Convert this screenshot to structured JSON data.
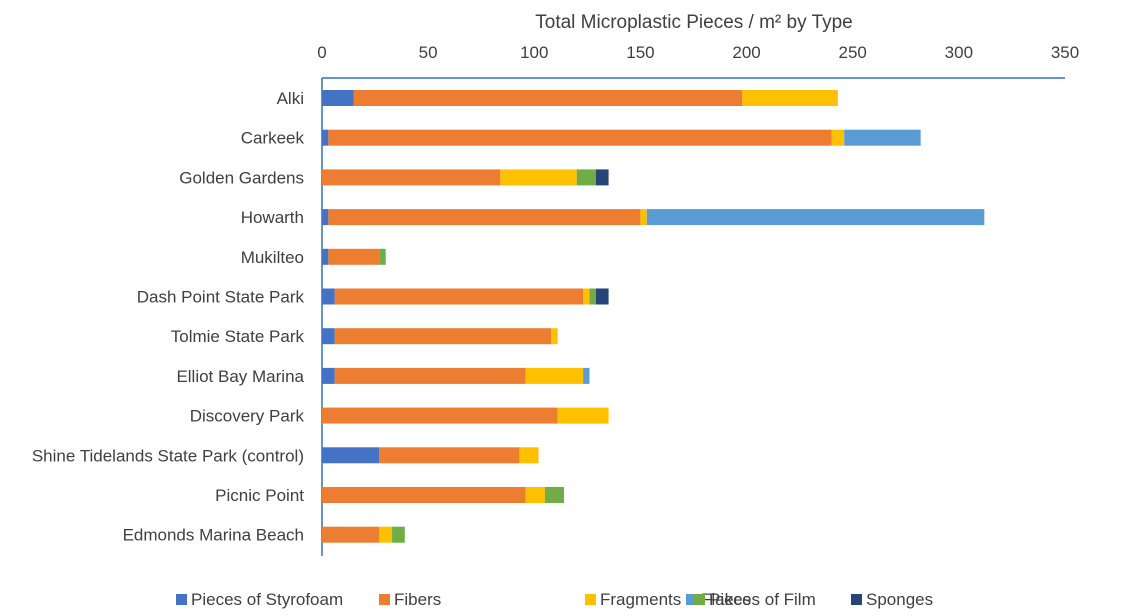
{
  "chart_data": {
    "type": "bar",
    "orientation": "horizontal",
    "stacked": true,
    "title": "",
    "xlabel": "Total Microplastic Pieces / m² by Type",
    "xlim": [
      0,
      350
    ],
    "xticks": [
      "0",
      "50",
      "100",
      "150",
      "200",
      "250",
      "300",
      "350"
    ],
    "x_axis_position": "top",
    "grid": false,
    "legend_position": "bottom",
    "categories": [
      "Alki",
      "Carkeek",
      "Golden Gardens",
      "Howarth",
      "Mukilteo",
      "Dash Point State Park",
      "Tolmie State Park",
      "Elliot Bay Marina",
      "Discovery Park",
      "Shine Tidelands State Park (control)",
      "Picnic Point",
      "Edmonds Marina Beach"
    ],
    "series": [
      {
        "name": "Pieces of Styrofoam",
        "color": "#4472C4",
        "values": [
          15,
          3,
          0,
          3,
          3,
          6,
          6,
          6,
          0,
          27,
          0,
          0
        ]
      },
      {
        "name": "Fibers",
        "color": "#ED7D31",
        "values": [
          183,
          237,
          84,
          147,
          24,
          117,
          102,
          90,
          111,
          66,
          96,
          27
        ]
      },
      {
        "name": "Fragments",
        "color": "#FFC000",
        "values": [
          45,
          6,
          36,
          3,
          0,
          3,
          3,
          27,
          24,
          9,
          9,
          6
        ]
      },
      {
        "name": "Flakes",
        "color": "#5B9BD5",
        "values": [
          0,
          36,
          0,
          159,
          0,
          0,
          0,
          3,
          0,
          0,
          0,
          0
        ]
      },
      {
        "name": "Pieces of Film",
        "color": "#70AD47",
        "values": [
          0,
          0,
          9,
          0,
          3,
          3,
          0,
          0,
          0,
          0,
          9,
          6
        ]
      },
      {
        "name": "Sponges",
        "color": "#264478",
        "values": [
          0,
          0,
          6,
          0,
          0,
          6,
          0,
          0,
          0,
          0,
          0,
          0
        ]
      }
    ]
  }
}
